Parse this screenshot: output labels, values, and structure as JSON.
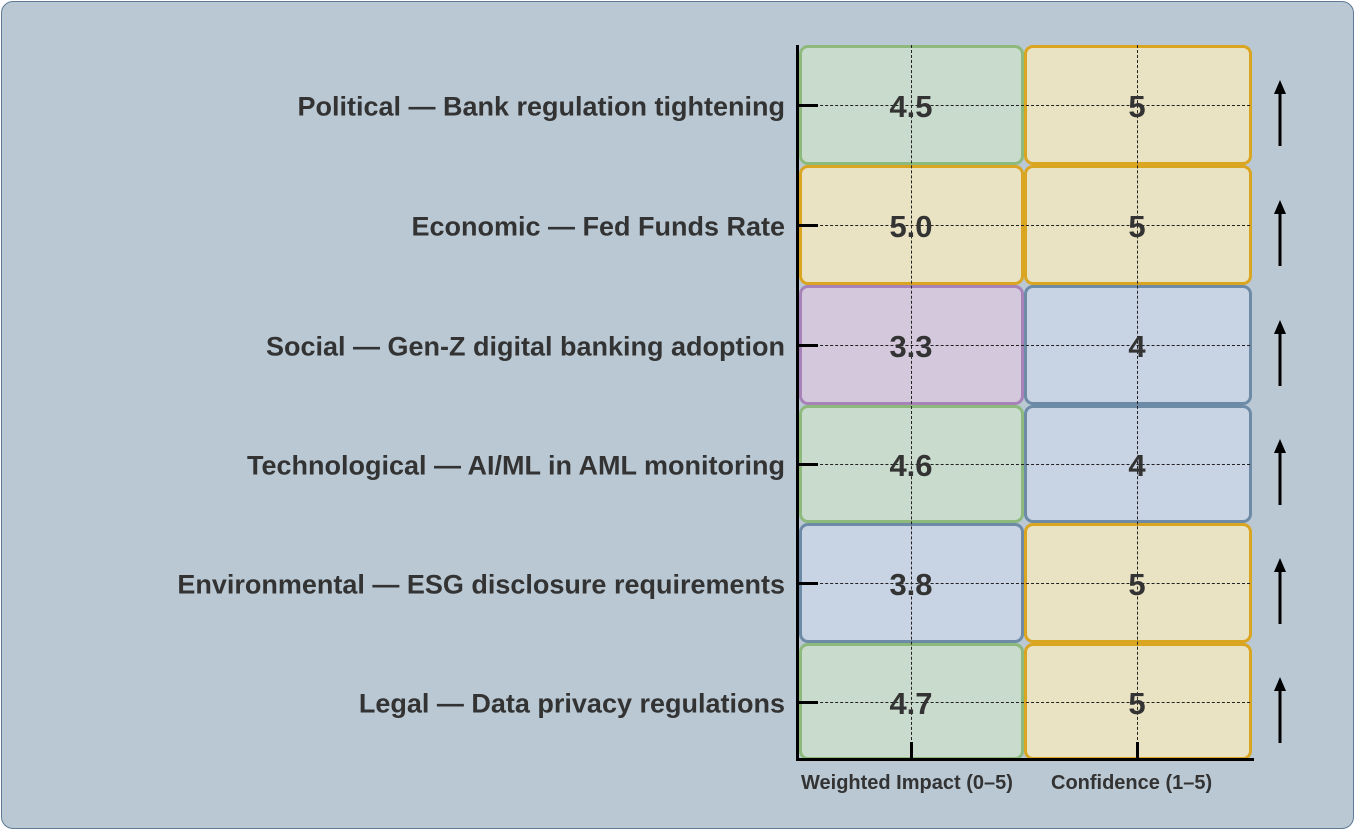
{
  "chart_data": {
    "type": "heatmap",
    "rows": [
      {
        "label": "Political — Bank regulation tightening",
        "impact": "4.5",
        "confidence": "5",
        "trend": "up",
        "impact_color": "green",
        "confidence_color": "yellow"
      },
      {
        "label": "Economic — Fed Funds Rate",
        "impact": "5.0",
        "confidence": "5",
        "trend": "up",
        "impact_color": "yellow",
        "confidence_color": "yellow"
      },
      {
        "label": "Social — Gen-Z digital banking adoption",
        "impact": "3.3",
        "confidence": "4",
        "trend": "up",
        "impact_color": "purple",
        "confidence_color": "blue"
      },
      {
        "label": "Technological — AI/ML in AML monitoring",
        "impact": "4.6",
        "confidence": "4",
        "trend": "up",
        "impact_color": "green",
        "confidence_color": "blue"
      },
      {
        "label": "Environmental — ESG disclosure requirements",
        "impact": "3.8",
        "confidence": "5",
        "trend": "up",
        "impact_color": "blue",
        "confidence_color": "yellow"
      },
      {
        "label": "Legal — Data privacy regulations",
        "impact": "4.7",
        "confidence": "5",
        "trend": "up",
        "impact_color": "green",
        "confidence_color": "yellow"
      }
    ],
    "columns": [
      "Weighted Impact (0–5)",
      "Confidence (1–5)"
    ],
    "palette": {
      "green": {
        "fill": "#c9dbcc",
        "border": "#8dba7c"
      },
      "yellow": {
        "fill": "#e9e2c3",
        "border": "#daa520"
      },
      "purple": {
        "fill": "#d4c9dc",
        "border": "#a682b8"
      },
      "blue": {
        "fill": "#c8d3e4",
        "border": "#6d8ba7"
      }
    },
    "background": "#b9c8d3"
  }
}
